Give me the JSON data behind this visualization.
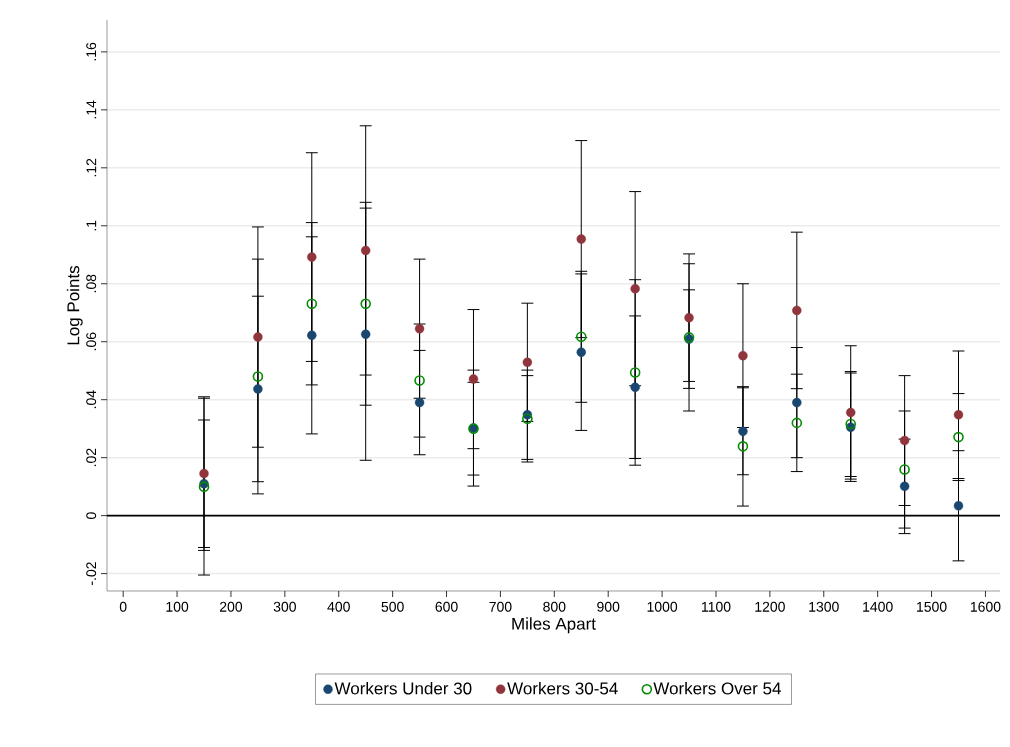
{
  "chart_data": {
    "type": "scatter",
    "xlabel": "Miles Apart",
    "ylabel": "Log Points",
    "x": [
      150,
      250,
      350,
      450,
      550,
      650,
      750,
      850,
      950,
      1050,
      1150,
      1250,
      1350,
      1450,
      1550
    ],
    "series": [
      {
        "name": "Workers Under 30",
        "color": "#1a476f",
        "marker": "circle",
        "values": [
          0.011,
          0.0437,
          0.0622,
          0.0626,
          0.039,
          0.0302,
          0.0348,
          0.0564,
          0.0443,
          0.0609,
          0.0291,
          0.039,
          0.0305,
          0.0101,
          0.0034
        ],
        "errors": [
          0.022,
          0.032,
          0.034,
          0.0435,
          0.018,
          0.02,
          0.0154,
          0.027,
          0.0246,
          0.017,
          0.015,
          0.019,
          0.0187,
          0.0163,
          0.019
        ]
      },
      {
        "name": "Workers 30-54",
        "color": "#90353b",
        "marker": "circle",
        "values": [
          0.0145,
          0.0616,
          0.0892,
          0.0915,
          0.0645,
          0.0471,
          0.0529,
          0.0954,
          0.0783,
          0.0683,
          0.0552,
          0.0708,
          0.0356,
          0.0259,
          0.0348
        ],
        "errors": [
          0.0265,
          0.038,
          0.036,
          0.043,
          0.024,
          0.024,
          0.0204,
          0.034,
          0.0335,
          0.022,
          0.0248,
          0.027,
          0.023,
          0.0224,
          0.022
        ]
      },
      {
        "name": "Workers Over 54",
        "color": "#038d03",
        "marker": "circle-open",
        "values": [
          0.01,
          0.048,
          0.0731,
          0.0731,
          0.0466,
          0.03,
          0.0334,
          0.0617,
          0.0494,
          0.0615,
          0.0239,
          0.032,
          0.0316,
          0.0159,
          0.0271
        ],
        "errors": [
          0.0305,
          0.0405,
          0.028,
          0.035,
          0.0195,
          0.016,
          0.0149,
          0.0226,
          0.032,
          0.0254,
          0.0206,
          0.0168,
          0.0181,
          0.0202,
          0.015
        ]
      }
    ],
    "xlim": [
      -30,
      1627
    ],
    "ylim": [
      -0.026,
      0.171
    ],
    "xticks": [
      0,
      100,
      200,
      300,
      400,
      500,
      600,
      700,
      800,
      900,
      1000,
      1100,
      1200,
      1300,
      1400,
      1500,
      1600
    ],
    "yticks": [
      {
        "value": -0.02,
        "label": "-.02"
      },
      0,
      {
        "value": 0.02,
        "label": ".02"
      },
      {
        "value": 0.04,
        "label": ".04"
      },
      {
        "value": 0.06,
        "label": ".06"
      },
      {
        "value": 0.08,
        "label": ".08"
      },
      {
        "value": 0.1,
        "label": ".1"
      },
      {
        "value": 0.12,
        "label": ".12"
      },
      {
        "value": 0.14,
        "label": ".14"
      },
      {
        "value": 0.16,
        "label": ".16"
      }
    ],
    "ref_lines": [
      {
        "axis": "y",
        "value": 0,
        "color": "#000000"
      }
    ],
    "grid": "y",
    "legend": "bottom"
  }
}
